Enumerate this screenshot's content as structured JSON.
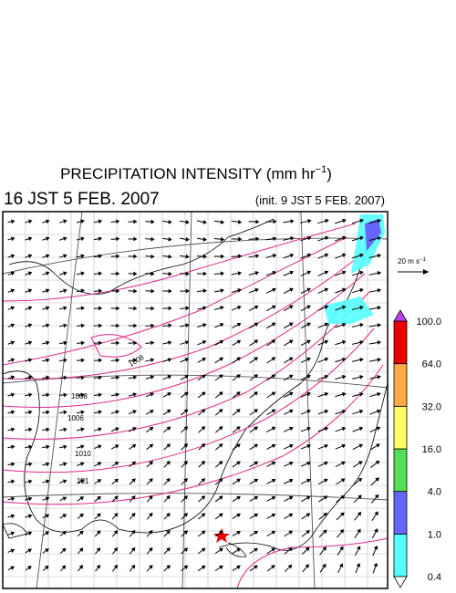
{
  "header": {
    "title": {
      "text": "PRECIPITATION INTENSITY (mm hr",
      "superscript": "−1",
      "close": ")"
    },
    "valid_time": "16 JST 5 FEB. 2007",
    "init_time": "(init. 9 JST 5 FEB. 2007)"
  },
  "wind_scale": {
    "text": "20 m s",
    "superscript": "−1"
  },
  "isobar_labels": [
    "1008",
    "1008",
    "1006",
    "1010",
    "101"
  ],
  "colorbar": {
    "labels": [
      "0.4",
      "1.0",
      "4.0",
      "16.0",
      "32.0",
      "64.0",
      "100.0"
    ],
    "colors": [
      "#55ffff",
      "#6666ff",
      "#55dd55",
      "#ffff66",
      "#ffaa44",
      "#ee0000",
      "#bb44ee"
    ]
  }
}
